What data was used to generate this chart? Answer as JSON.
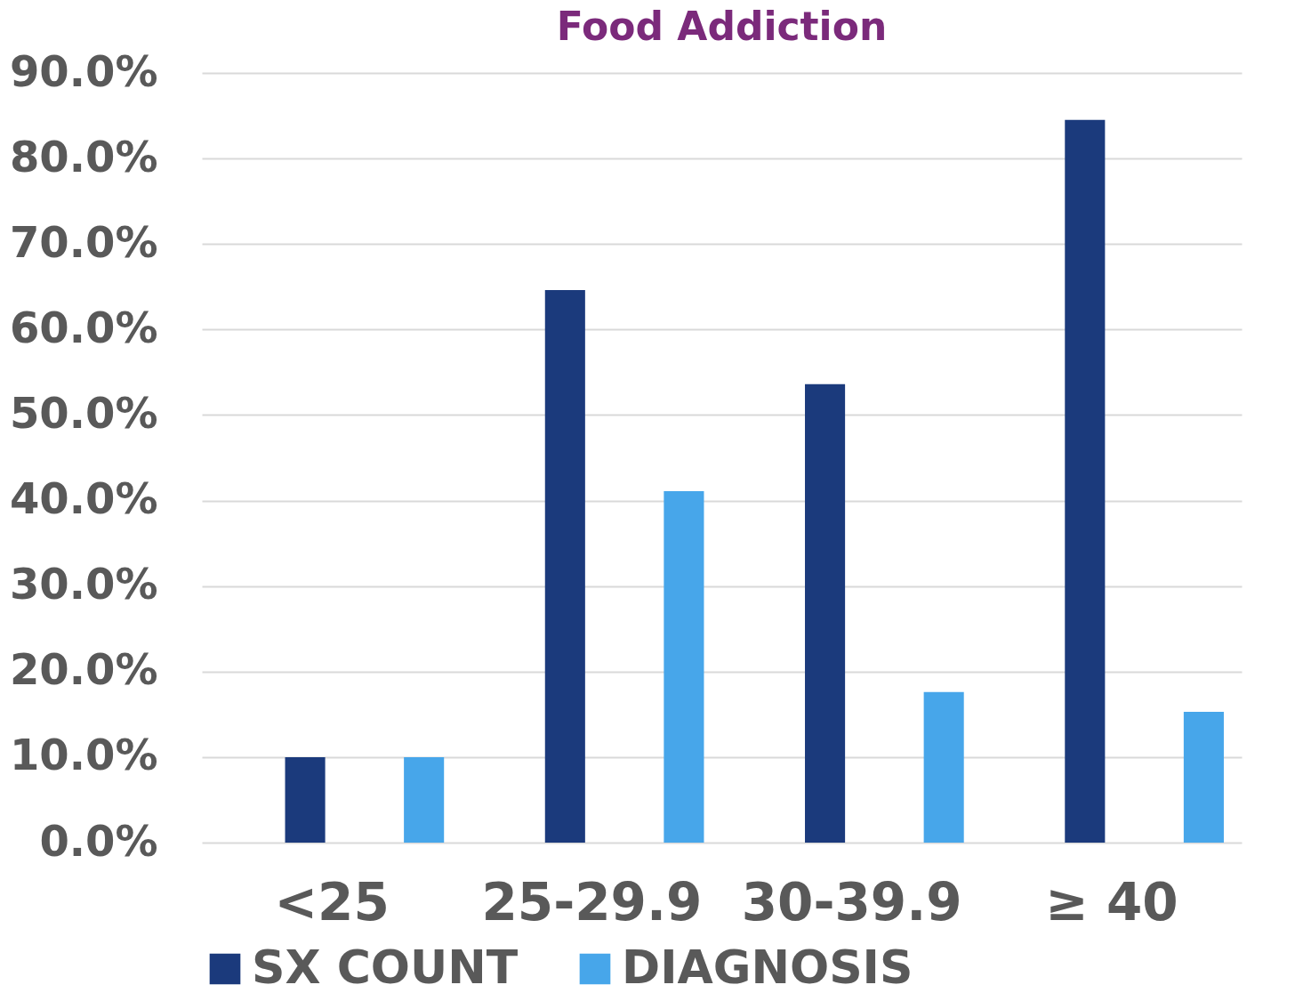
{
  "chart_data": {
    "type": "bar",
    "title": "Food Addiction",
    "categories": [
      "<25",
      "25-29.9",
      "30-39.9",
      "≥ 40"
    ],
    "series": [
      {
        "name": "SX COUNT",
        "color": "#1b3a7c",
        "values": [
          10,
          64.6,
          53.6,
          84.5
        ]
      },
      {
        "name": "DIAGNOSIS",
        "color": "#47a6ea",
        "values": [
          10,
          41.1,
          17.6,
          15.3
        ]
      }
    ],
    "ylim": [
      0,
      90
    ],
    "yticks": [
      {
        "value": 0,
        "label": "0.0%"
      },
      {
        "value": 10,
        "label": "10.0%"
      },
      {
        "value": 20,
        "label": "20.0%"
      },
      {
        "value": 30,
        "label": "30.0%"
      },
      {
        "value": 40,
        "label": "40.0%"
      },
      {
        "value": 50,
        "label": "50.0%"
      },
      {
        "value": 60,
        "label": "60.0%"
      },
      {
        "value": 70,
        "label": "70.0%"
      },
      {
        "value": 80,
        "label": "80.0%"
      },
      {
        "value": 90,
        "label": "90.0%"
      }
    ],
    "grid": "y",
    "legend": "bottom"
  }
}
